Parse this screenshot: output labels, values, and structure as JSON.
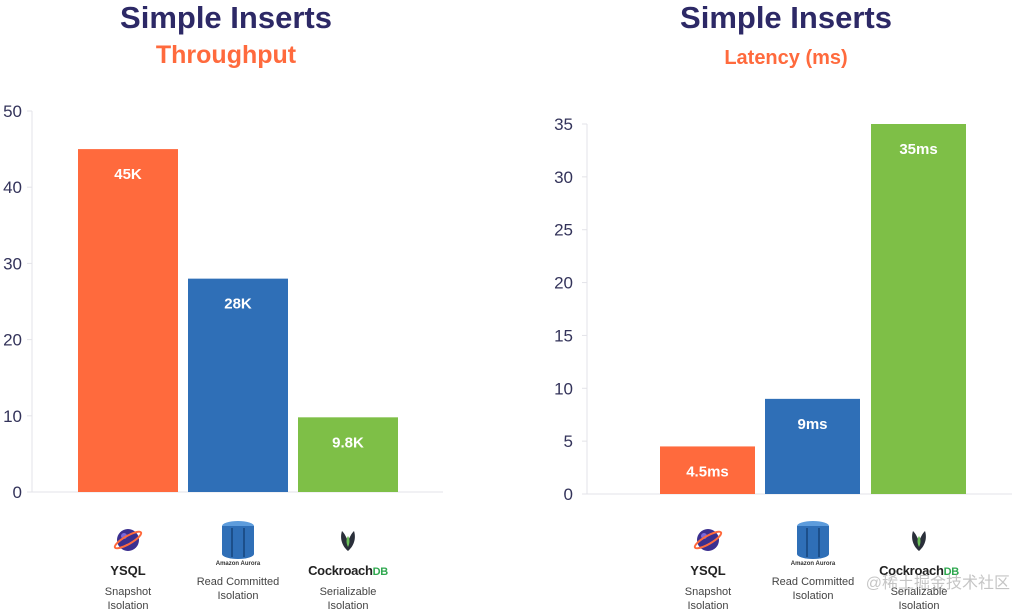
{
  "charts": [
    {
      "title": "Simple Inserts",
      "subtitle": "Throughput"
    },
    {
      "title": "Simple Inserts",
      "subtitle": "Latency (ms)"
    }
  ],
  "categories": [
    {
      "name": "YSQL",
      "line1": "Snapshot",
      "line2": "Isolation",
      "logo": "ysql-planet-icon"
    },
    {
      "name": "Amazon Aurora",
      "line1": "Read Committed",
      "line2": "Isolation",
      "logo": "aurora-cylinder-icon"
    },
    {
      "name": "CockroachDB",
      "brand_main": "Cockroach",
      "brand_suffix": "DB",
      "line1": "Serializable",
      "line2": "Isolation",
      "logo": "cockroach-icon"
    }
  ],
  "chart_data": [
    {
      "type": "bar",
      "title": "Simple Inserts",
      "subtitle": "Throughput",
      "categories": [
        "YSQL",
        "Amazon Aurora",
        "CockroachDB"
      ],
      "values": [
        45,
        28,
        9.8
      ],
      "data_labels": [
        "45K",
        "28K",
        "9.8K"
      ],
      "colors": [
        "#ff6a3d",
        "#2f6fb7",
        "#7ebf47"
      ],
      "ylim": [
        0,
        50
      ],
      "yticks": [
        0,
        10,
        20,
        30,
        40,
        50
      ],
      "grid": false,
      "legend": "none"
    },
    {
      "type": "bar",
      "title": "Simple Inserts",
      "subtitle": "Latency (ms)",
      "categories": [
        "YSQL",
        "Amazon Aurora",
        "CockroachDB"
      ],
      "values": [
        4.5,
        9,
        35
      ],
      "data_labels": [
        "4.5ms",
        "9ms",
        "35ms"
      ],
      "colors": [
        "#ff6a3d",
        "#2f6fb7",
        "#7ebf47"
      ],
      "ylim": [
        0,
        35
      ],
      "yticks": [
        0,
        5,
        10,
        15,
        20,
        25,
        30,
        35
      ],
      "grid": false,
      "legend": "none"
    }
  ],
  "watermark": "@稀土掘金技术社区"
}
